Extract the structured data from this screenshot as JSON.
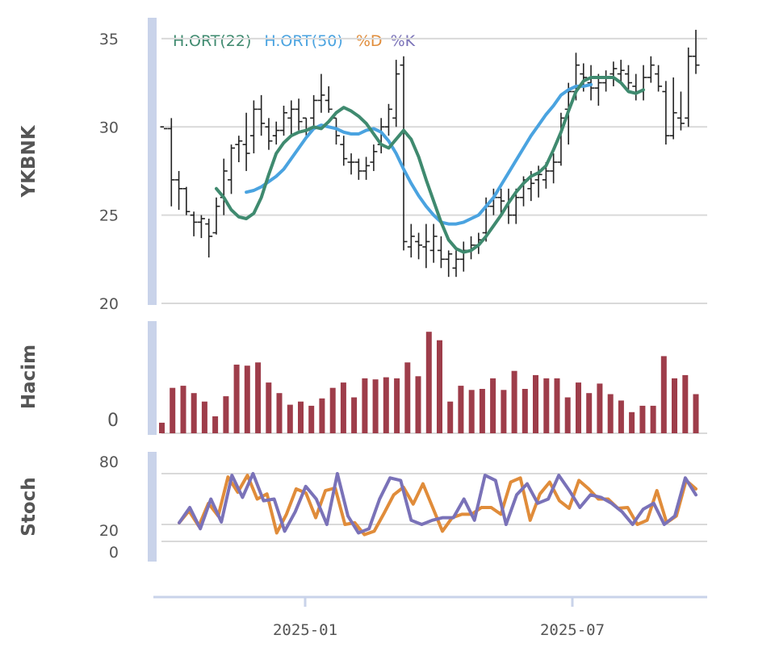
{
  "chart_data": [
    {
      "type": "ohlc",
      "ylabel": "YKBNK",
      "ylim": [
        20,
        36
      ],
      "yticks": [
        20,
        25,
        30,
        35
      ],
      "legend": [
        {
          "label": "H.ORT(22)",
          "color": "#3f8a6f"
        },
        {
          "label": "H.ORT(50)",
          "color": "#4aa3e0"
        },
        {
          "label": "%D",
          "color": "#e08c3a"
        },
        {
          "label": "%K",
          "color": "#7a72b8"
        }
      ],
      "colors": {
        "bars": "#222222",
        "ma22": "#3f8a6f",
        "ma50": "#4aa3e0"
      },
      "ohlc": [
        {
          "o": 30,
          "h": 30,
          "l": 30,
          "c": 29.9
        },
        {
          "o": 29.9,
          "h": 30.5,
          "l": 25.5,
          "c": 27.0
        },
        {
          "o": 27.0,
          "h": 27.5,
          "l": 25.3,
          "c": 26.5
        },
        {
          "o": 26.5,
          "h": 26.6,
          "l": 25.0,
          "c": 25.2
        },
        {
          "o": 25.0,
          "h": 25.2,
          "l": 23.8,
          "c": 24.6
        },
        {
          "o": 24.6,
          "h": 25.0,
          "l": 23.7,
          "c": 24.8
        },
        {
          "o": 24.5,
          "h": 24.8,
          "l": 22.6,
          "c": 23.8
        },
        {
          "o": 24.0,
          "h": 26.0,
          "l": 23.9,
          "c": 25.5
        },
        {
          "o": 26.0,
          "h": 28.2,
          "l": 25.0,
          "c": 27.5
        },
        {
          "o": 27.0,
          "h": 29.0,
          "l": 26.2,
          "c": 28.8
        },
        {
          "o": 29.0,
          "h": 29.5,
          "l": 28.0,
          "c": 29.2
        },
        {
          "o": 29.0,
          "h": 30.8,
          "l": 27.5,
          "c": 28.5
        },
        {
          "o": 29.5,
          "h": 31.5,
          "l": 28.5,
          "c": 31.0
        },
        {
          "o": 31.0,
          "h": 31.8,
          "l": 29.5,
          "c": 30.2
        },
        {
          "o": 30.0,
          "h": 30.5,
          "l": 28.7,
          "c": 29.2
        },
        {
          "o": 29.5,
          "h": 30.3,
          "l": 29.0,
          "c": 29.8
        },
        {
          "o": 29.8,
          "h": 31.2,
          "l": 29.5,
          "c": 30.8
        },
        {
          "o": 30.5,
          "h": 31.5,
          "l": 29.5,
          "c": 31.0
        },
        {
          "o": 31.0,
          "h": 31.6,
          "l": 29.8,
          "c": 30.3
        },
        {
          "o": 30.5,
          "h": 30.5,
          "l": 29.5,
          "c": 29.8
        },
        {
          "o": 30.5,
          "h": 31.8,
          "l": 30.0,
          "c": 31.5
        },
        {
          "o": 31.5,
          "h": 33.0,
          "l": 30.8,
          "c": 31.8
        },
        {
          "o": 31.5,
          "h": 32.3,
          "l": 30.8,
          "c": 31.0
        },
        {
          "o": 30.5,
          "h": 30.5,
          "l": 29.0,
          "c": 29.5
        },
        {
          "o": 29.0,
          "h": 29.5,
          "l": 27.8,
          "c": 28.2
        },
        {
          "o": 28.0,
          "h": 28.5,
          "l": 27.3,
          "c": 28.0
        },
        {
          "o": 28.0,
          "h": 28.2,
          "l": 27.0,
          "c": 27.5
        },
        {
          "o": 27.5,
          "h": 28.3,
          "l": 27.0,
          "c": 27.8
        },
        {
          "o": 28.0,
          "h": 29.0,
          "l": 27.5,
          "c": 28.6
        },
        {
          "o": 29.0,
          "h": 30.5,
          "l": 28.5,
          "c": 30.0
        },
        {
          "o": 30.0,
          "h": 31.3,
          "l": 29.5,
          "c": 31.0
        },
        {
          "o": 30.5,
          "h": 33.8,
          "l": 30.0,
          "c": 33.0
        },
        {
          "o": 33.5,
          "h": 34.0,
          "l": 23.0,
          "c": 23.5
        },
        {
          "o": 23.2,
          "h": 24.5,
          "l": 22.6,
          "c": 23.8
        },
        {
          "o": 23.5,
          "h": 24.0,
          "l": 22.5,
          "c": 23.3
        },
        {
          "o": 23.2,
          "h": 24.5,
          "l": 22.0,
          "c": 23.5
        },
        {
          "o": 23.0,
          "h": 24.5,
          "l": 22.3,
          "c": 23.8
        },
        {
          "o": 23.0,
          "h": 23.8,
          "l": 22.0,
          "c": 22.5
        },
        {
          "o": 22.5,
          "h": 23.0,
          "l": 21.5,
          "c": 22.8
        },
        {
          "o": 22.0,
          "h": 23.0,
          "l": 21.5,
          "c": 22.5
        },
        {
          "o": 22.5,
          "h": 23.5,
          "l": 21.8,
          "c": 23.0
        },
        {
          "o": 23.0,
          "h": 23.8,
          "l": 22.5,
          "c": 23.3
        },
        {
          "o": 23.3,
          "h": 24.0,
          "l": 22.8,
          "c": 23.6
        },
        {
          "o": 24.0,
          "h": 26.0,
          "l": 23.5,
          "c": 25.5
        },
        {
          "o": 25.5,
          "h": 26.5,
          "l": 25.0,
          "c": 26.0
        },
        {
          "o": 26.0,
          "h": 26.5,
          "l": 25.0,
          "c": 25.8
        },
        {
          "o": 25.5,
          "h": 26.5,
          "l": 24.5,
          "c": 25.0
        },
        {
          "o": 25.0,
          "h": 26.5,
          "l": 24.5,
          "c": 26.0
        },
        {
          "o": 26.0,
          "h": 27.2,
          "l": 25.5,
          "c": 27.0
        },
        {
          "o": 26.5,
          "h": 27.5,
          "l": 25.8,
          "c": 26.8
        },
        {
          "o": 27.0,
          "h": 27.8,
          "l": 26.0,
          "c": 27.3
        },
        {
          "o": 27.0,
          "h": 28.0,
          "l": 26.5,
          "c": 27.5
        },
        {
          "o": 27.5,
          "h": 28.5,
          "l": 26.8,
          "c": 28.0
        },
        {
          "o": 28.0,
          "h": 30.8,
          "l": 27.8,
          "c": 30.5
        },
        {
          "o": 31.0,
          "h": 32.5,
          "l": 29.0,
          "c": 32.0
        },
        {
          "o": 32.0,
          "h": 34.2,
          "l": 31.5,
          "c": 33.5
        },
        {
          "o": 33.0,
          "h": 33.6,
          "l": 32.0,
          "c": 32.8
        },
        {
          "o": 32.5,
          "h": 33.5,
          "l": 31.5,
          "c": 32.2
        },
        {
          "o": 32.2,
          "h": 33.0,
          "l": 31.2,
          "c": 32.5
        },
        {
          "o": 32.5,
          "h": 33.2,
          "l": 32.0,
          "c": 32.8
        },
        {
          "o": 33.0,
          "h": 33.7,
          "l": 32.3,
          "c": 33.3
        },
        {
          "o": 33.0,
          "h": 33.8,
          "l": 32.5,
          "c": 33.2
        },
        {
          "o": 33.0,
          "h": 33.5,
          "l": 32.0,
          "c": 32.5
        },
        {
          "o": 32.3,
          "h": 33.0,
          "l": 31.5,
          "c": 32.0
        },
        {
          "o": 32.0,
          "h": 33.5,
          "l": 31.5,
          "c": 32.8
        },
        {
          "o": 32.8,
          "h": 34.0,
          "l": 32.5,
          "c": 33.5
        },
        {
          "o": 33.0,
          "h": 33.5,
          "l": 32.0,
          "c": 32.3
        },
        {
          "o": 32.0,
          "h": 32.6,
          "l": 29.0,
          "c": 29.5
        },
        {
          "o": 29.5,
          "h": 32.8,
          "l": 29.3,
          "c": 30.8
        },
        {
          "o": 30.5,
          "h": 32.0,
          "l": 29.8,
          "c": 30.2
        },
        {
          "o": 30.5,
          "h": 34.5,
          "l": 30.0,
          "c": 34.0
        },
        {
          "o": 34.0,
          "h": 35.5,
          "l": 33.0,
          "c": 33.5
        }
      ],
      "ma22": [
        {
          "i": 7,
          "v": 26.5
        },
        {
          "i": 8,
          "v": 26.0
        },
        {
          "i": 9,
          "v": 25.3
        },
        {
          "i": 10,
          "v": 24.9
        },
        {
          "i": 11,
          "v": 24.8
        },
        {
          "i": 12,
          "v": 25.1
        },
        {
          "i": 13,
          "v": 26.0
        },
        {
          "i": 14,
          "v": 27.3
        },
        {
          "i": 15,
          "v": 28.5
        },
        {
          "i": 16,
          "v": 29.1
        },
        {
          "i": 17,
          "v": 29.5
        },
        {
          "i": 18,
          "v": 29.7
        },
        {
          "i": 19,
          "v": 29.8
        },
        {
          "i": 20,
          "v": 30.0
        },
        {
          "i": 21,
          "v": 29.9
        },
        {
          "i": 22,
          "v": 30.3
        },
        {
          "i": 23,
          "v": 30.8
        },
        {
          "i": 24,
          "v": 31.1
        },
        {
          "i": 25,
          "v": 30.9
        },
        {
          "i": 26,
          "v": 30.6
        },
        {
          "i": 27,
          "v": 30.2
        },
        {
          "i": 28,
          "v": 29.6
        },
        {
          "i": 29,
          "v": 29.0
        },
        {
          "i": 30,
          "v": 28.8
        },
        {
          "i": 31,
          "v": 29.3
        },
        {
          "i": 32,
          "v": 29.8
        },
        {
          "i": 33,
          "v": 29.3
        },
        {
          "i": 34,
          "v": 28.3
        },
        {
          "i": 35,
          "v": 27.0
        },
        {
          "i": 36,
          "v": 25.8
        },
        {
          "i": 37,
          "v": 24.6
        },
        {
          "i": 38,
          "v": 23.6
        },
        {
          "i": 39,
          "v": 23.1
        },
        {
          "i": 40,
          "v": 22.9
        },
        {
          "i": 41,
          "v": 23.0
        },
        {
          "i": 42,
          "v": 23.3
        },
        {
          "i": 43,
          "v": 23.8
        },
        {
          "i": 44,
          "v": 24.4
        },
        {
          "i": 45,
          "v": 25.0
        },
        {
          "i": 46,
          "v": 25.7
        },
        {
          "i": 47,
          "v": 26.3
        },
        {
          "i": 48,
          "v": 26.8
        },
        {
          "i": 49,
          "v": 27.2
        },
        {
          "i": 50,
          "v": 27.4
        },
        {
          "i": 51,
          "v": 27.8
        },
        {
          "i": 52,
          "v": 28.7
        },
        {
          "i": 53,
          "v": 29.7
        },
        {
          "i": 54,
          "v": 30.9
        },
        {
          "i": 55,
          "v": 32.0
        },
        {
          "i": 56,
          "v": 32.6
        },
        {
          "i": 57,
          "v": 32.8
        },
        {
          "i": 58,
          "v": 32.8
        },
        {
          "i": 59,
          "v": 32.8
        },
        {
          "i": 60,
          "v": 32.8
        },
        {
          "i": 61,
          "v": 32.5
        },
        {
          "i": 62,
          "v": 32.0
        },
        {
          "i": 63,
          "v": 31.9
        },
        {
          "i": 64,
          "v": 32.1
        }
      ],
      "ma50": [
        {
          "i": 11,
          "v": 26.3
        },
        {
          "i": 12,
          "v": 26.4
        },
        {
          "i": 13,
          "v": 26.6
        },
        {
          "i": 14,
          "v": 26.9
        },
        {
          "i": 15,
          "v": 27.2
        },
        {
          "i": 16,
          "v": 27.6
        },
        {
          "i": 17,
          "v": 28.2
        },
        {
          "i": 18,
          "v": 28.8
        },
        {
          "i": 19,
          "v": 29.4
        },
        {
          "i": 20,
          "v": 29.9
        },
        {
          "i": 21,
          "v": 30.1
        },
        {
          "i": 22,
          "v": 30.0
        },
        {
          "i": 23,
          "v": 29.9
        },
        {
          "i": 24,
          "v": 29.7
        },
        {
          "i": 25,
          "v": 29.6
        },
        {
          "i": 26,
          "v": 29.6
        },
        {
          "i": 27,
          "v": 29.8
        },
        {
          "i": 28,
          "v": 29.9
        },
        {
          "i": 29,
          "v": 29.7
        },
        {
          "i": 30,
          "v": 29.2
        },
        {
          "i": 31,
          "v": 28.5
        },
        {
          "i": 32,
          "v": 27.6
        },
        {
          "i": 33,
          "v": 26.8
        },
        {
          "i": 34,
          "v": 26.1
        },
        {
          "i": 35,
          "v": 25.5
        },
        {
          "i": 36,
          "v": 25.0
        },
        {
          "i": 37,
          "v": 24.6
        },
        {
          "i": 38,
          "v": 24.5
        },
        {
          "i": 39,
          "v": 24.5
        },
        {
          "i": 40,
          "v": 24.6
        },
        {
          "i": 41,
          "v": 24.8
        },
        {
          "i": 42,
          "v": 25.0
        },
        {
          "i": 43,
          "v": 25.5
        },
        {
          "i": 44,
          "v": 26.0
        },
        {
          "i": 45,
          "v": 26.7
        },
        {
          "i": 46,
          "v": 27.4
        },
        {
          "i": 47,
          "v": 28.1
        },
        {
          "i": 48,
          "v": 28.8
        },
        {
          "i": 49,
          "v": 29.5
        },
        {
          "i": 50,
          "v": 30.1
        },
        {
          "i": 51,
          "v": 30.7
        },
        {
          "i": 52,
          "v": 31.2
        },
        {
          "i": 53,
          "v": 31.8
        },
        {
          "i": 54,
          "v": 32.1
        },
        {
          "i": 55,
          "v": 32.3
        },
        {
          "i": 56,
          "v": 32.3
        },
        {
          "i": 57,
          "v": 32.4
        }
      ]
    },
    {
      "type": "bar",
      "ylabel": "Hacim",
      "yticks": [
        0
      ],
      "color": "#9e3d4a",
      "values": [
        10,
        43,
        45,
        38,
        30,
        16,
        35,
        65,
        64,
        67,
        48,
        38,
        27,
        30,
        26,
        33,
        43,
        48,
        34,
        52,
        51,
        53,
        52,
        67,
        54,
        96,
        88,
        30,
        45,
        41,
        42,
        52,
        41,
        59,
        42,
        55,
        52,
        52,
        34,
        48,
        38,
        47,
        37,
        31,
        20,
        26,
        26,
        73,
        52,
        55,
        37
      ]
    },
    {
      "type": "line",
      "ylabel": "Stoch",
      "ylim": [
        0,
        100
      ],
      "yticks": [
        0,
        20,
        80
      ],
      "series": [
        {
          "name": "%D",
          "color": "#e08c3a",
          "values": [
            22,
            36,
            18,
            45,
            30,
            76,
            58,
            78,
            50,
            56,
            10,
            32,
            62,
            57,
            28,
            60,
            63,
            20,
            22,
            8,
            12,
            33,
            55,
            64,
            44,
            68,
            40,
            12,
            28,
            32,
            32,
            40,
            40,
            32,
            70,
            75,
            25,
            56,
            70,
            48,
            39,
            72,
            62,
            50,
            50,
            39,
            40,
            20,
            25,
            60,
            22,
            30,
            72,
            62
          ]
        },
        {
          "name": "%K",
          "color": "#7a72b8",
          "values": [
            22,
            40,
            15,
            50,
            23,
            78,
            52,
            80,
            48,
            50,
            12,
            35,
            65,
            50,
            20,
            80,
            30,
            10,
            15,
            50,
            75,
            72,
            25,
            20,
            25,
            28,
            28,
            50,
            25,
            78,
            72,
            20,
            55,
            68,
            45,
            50,
            78,
            60,
            40,
            55,
            52,
            45,
            35,
            20,
            38,
            45,
            20,
            30,
            75,
            55
          ]
        }
      ]
    },
    {
      "type": "axis",
      "xticks": [
        "2025-01",
        "2025-07"
      ]
    }
  ]
}
